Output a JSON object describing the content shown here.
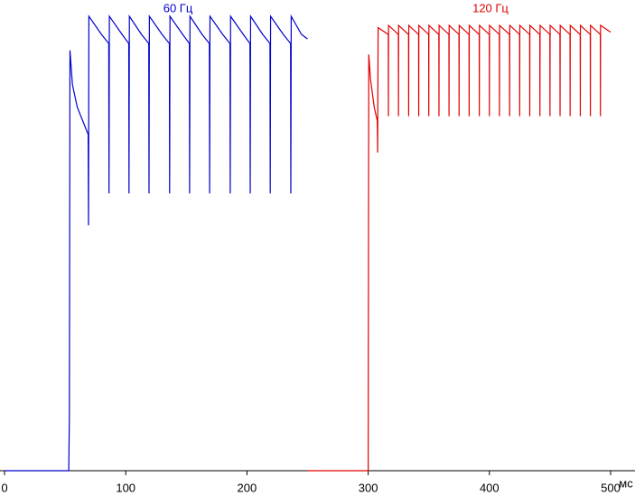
{
  "chart_data": {
    "type": "line",
    "x_label": "мс",
    "xlim": [
      0,
      500
    ],
    "xticks": [
      0,
      100,
      200,
      300,
      400,
      500
    ],
    "ylim": [
      0,
      100
    ],
    "series": [
      {
        "name": "60 Гц",
        "color": "#0000cc",
        "x": [
          0,
          53,
          53.5,
          54,
          56,
          60,
          66,
          69,
          69.3,
          69.6,
          80,
          86,
          86.2,
          86.5,
          97,
          102.5,
          102.7,
          103,
          113,
          119,
          119.2,
          119.5,
          130,
          136,
          136.2,
          136.5,
          147,
          152.5,
          152.7,
          153,
          163,
          169,
          169.2,
          169.5,
          180,
          186,
          186.2,
          186.5,
          197,
          202.5,
          202.7,
          203,
          213,
          219,
          219.2,
          219.5,
          230,
          236,
          236.2,
          236.5,
          245,
          250
        ],
        "values": [
          0,
          0,
          12,
          92.5,
          85,
          80,
          76,
          74,
          54,
          100,
          96,
          94,
          61,
          100,
          96,
          94,
          61,
          100,
          96,
          94,
          61,
          100,
          96,
          94,
          61,
          100,
          96,
          94,
          61,
          100,
          96,
          94,
          61,
          100,
          96,
          94,
          61,
          100,
          96,
          94,
          61,
          100,
          96,
          94,
          61,
          100,
          96,
          94,
          61,
          100,
          96,
          95
        ]
      },
      {
        "name": "120 Гц",
        "color": "#e00000",
        "x": [
          250,
          300,
          300.5,
          302,
          305,
          307.5,
          307.8,
          308.2,
          316.6,
          316.7,
          316.8,
          324.9,
          325,
          325.1,
          333.3,
          333.4,
          333.5,
          341.6,
          341.7,
          341.8,
          349.9,
          350,
          350.1,
          358.3,
          358.4,
          358.5,
          366.6,
          366.7,
          366.8,
          374.9,
          375,
          375.1,
          383.2,
          383.3,
          383.4,
          391.6,
          391.7,
          391.8,
          399.9,
          400,
          400.1,
          408.2,
          408.3,
          408.4,
          416.6,
          416.7,
          416.8,
          424.9,
          425,
          425.1,
          433.2,
          433.3,
          433.4,
          441.6,
          441.7,
          441.8,
          449.9,
          450,
          450.1,
          458.2,
          458.3,
          458.4,
          466.5,
          466.6,
          466.7,
          474.9,
          475,
          475.1,
          483.2,
          483.3,
          483.4,
          491.5,
          491.6,
          491.7,
          500
        ],
        "values": [
          0,
          0,
          91.6,
          86,
          80,
          77,
          70,
          97.5,
          96,
          78,
          98,
          96,
          78,
          98,
          96,
          78,
          98,
          96,
          78,
          98,
          96,
          78,
          98,
          96,
          78,
          98,
          96,
          78,
          98,
          96,
          78,
          98,
          96,
          78,
          98,
          96,
          78,
          98,
          96,
          78,
          98,
          96,
          78,
          98,
          96,
          78,
          98,
          96,
          78,
          98,
          96,
          78,
          98,
          96,
          78,
          98,
          96,
          78,
          98,
          96,
          78,
          98,
          96,
          78,
          98,
          96,
          78,
          98,
          96,
          78,
          98,
          96,
          78,
          98,
          96.5
        ]
      }
    ]
  }
}
